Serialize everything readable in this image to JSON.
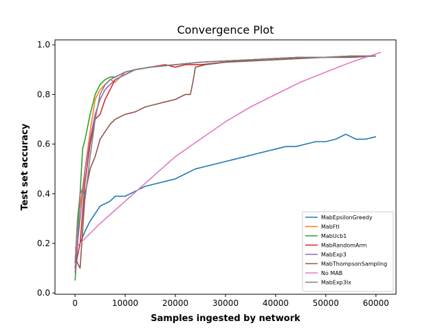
{
  "chart_data": {
    "type": "line",
    "title": "Convergence Plot",
    "xlabel": "Samples ingested by network",
    "ylabel": "Test set accuracy",
    "xlim": [
      -4000,
      64000
    ],
    "ylim": [
      -0.005,
      1.02
    ],
    "xticks": [
      0,
      10000,
      20000,
      30000,
      40000,
      50000,
      60000
    ],
    "yticks": [
      0.0,
      0.2,
      0.4,
      0.6,
      0.8,
      1.0
    ],
    "xtick_labels": [
      "0",
      "10000",
      "20000",
      "30000",
      "40000",
      "50000",
      "60000"
    ],
    "ytick_labels": [
      "0.0",
      "0.2",
      "0.4",
      "0.6",
      "0.8",
      "1.0"
    ],
    "grid": false,
    "legend_position": "lower-right",
    "series": [
      {
        "name": "MabEpsilonGreedy",
        "color": "#1f77b4",
        "x": [
          0,
          500,
          1000,
          2000,
          3000,
          4000,
          5000,
          6000,
          7000,
          8000,
          10000,
          12000,
          14000,
          16000,
          18000,
          20000,
          22000,
          24000,
          26000,
          28000,
          30000,
          32000,
          34000,
          36000,
          38000,
          40000,
          42000,
          44000,
          46000,
          48000,
          50000,
          52000,
          54000,
          56000,
          58000,
          60000
        ],
        "y": [
          0.12,
          0.19,
          0.2,
          0.25,
          0.29,
          0.32,
          0.35,
          0.36,
          0.37,
          0.39,
          0.39,
          0.41,
          0.43,
          0.44,
          0.45,
          0.46,
          0.48,
          0.5,
          0.51,
          0.52,
          0.53,
          0.54,
          0.55,
          0.56,
          0.57,
          0.58,
          0.59,
          0.59,
          0.6,
          0.61,
          0.61,
          0.62,
          0.64,
          0.62,
          0.62,
          0.63
        ]
      },
      {
        "name": "MabFtl",
        "color": "#ff7f0e",
        "x": [
          0,
          500,
          1000,
          2000,
          3000,
          4000,
          5000,
          6000,
          7000,
          8000,
          9000,
          10000,
          12000,
          15000,
          20000,
          25000,
          30000,
          35000,
          40000,
          45000,
          50000,
          55000,
          60000
        ],
        "y": [
          0.1,
          0.3,
          0.35,
          0.5,
          0.65,
          0.78,
          0.82,
          0.84,
          0.86,
          0.85,
          0.87,
          0.89,
          0.9,
          0.91,
          0.92,
          0.93,
          0.935,
          0.94,
          0.945,
          0.95,
          0.95,
          0.955,
          0.955
        ]
      },
      {
        "name": "MabUcb1",
        "color": "#2ca02c",
        "x": [
          0,
          500,
          1000,
          1500,
          2000,
          3000,
          4000,
          5000,
          6000,
          7000,
          8000,
          9000,
          10000,
          12000,
          15000,
          20000,
          25000,
          30000,
          35000,
          40000,
          45000,
          50000,
          55000,
          60000
        ],
        "y": [
          0.05,
          0.2,
          0.4,
          0.58,
          0.62,
          0.72,
          0.8,
          0.84,
          0.86,
          0.87,
          0.87,
          0.88,
          0.89,
          0.9,
          0.91,
          0.92,
          0.93,
          0.935,
          0.94,
          0.945,
          0.95,
          0.95,
          0.955,
          0.955
        ]
      },
      {
        "name": "MabRandomArm",
        "color": "#d62728",
        "x": [
          0,
          500,
          1000,
          2000,
          3000,
          4000,
          5000,
          6000,
          7000,
          8000,
          10000,
          12000,
          15000,
          18000,
          20000,
          22000,
          25000,
          30000,
          35000,
          40000,
          45000,
          50000,
          55000,
          60000
        ],
        "y": [
          0.1,
          0.15,
          0.2,
          0.45,
          0.6,
          0.7,
          0.72,
          0.78,
          0.82,
          0.86,
          0.88,
          0.9,
          0.91,
          0.92,
          0.91,
          0.92,
          0.92,
          0.93,
          0.94,
          0.945,
          0.95,
          0.95,
          0.95,
          0.955
        ]
      },
      {
        "name": "MabExp3",
        "color": "#9467bd",
        "x": [
          0,
          500,
          1000,
          2000,
          3000,
          4000,
          5000,
          6000,
          7000,
          8000,
          10000,
          12000,
          15000,
          20000,
          25000,
          30000,
          35000,
          40000,
          45000,
          50000,
          55000,
          60000
        ],
        "y": [
          0.08,
          0.2,
          0.3,
          0.5,
          0.62,
          0.72,
          0.78,
          0.82,
          0.84,
          0.86,
          0.88,
          0.9,
          0.91,
          0.92,
          0.93,
          0.935,
          0.94,
          0.945,
          0.95,
          0.95,
          0.955,
          0.955
        ]
      },
      {
        "name": "MabThompsonSampling",
        "color": "#8c564b",
        "x": [
          0,
          500,
          1000,
          2000,
          3000,
          4000,
          5000,
          6000,
          7000,
          8000,
          10000,
          12000,
          14000,
          16000,
          18000,
          20000,
          22000,
          23000,
          23500,
          24000,
          26000,
          28000,
          30000,
          35000,
          40000,
          45000,
          50000,
          55000,
          60000
        ],
        "y": [
          0.15,
          0.12,
          0.1,
          0.4,
          0.5,
          0.55,
          0.62,
          0.65,
          0.68,
          0.7,
          0.72,
          0.73,
          0.75,
          0.76,
          0.77,
          0.78,
          0.8,
          0.8,
          0.85,
          0.91,
          0.92,
          0.925,
          0.93,
          0.935,
          0.94,
          0.945,
          0.95,
          0.95,
          0.955
        ]
      },
      {
        "name": "No MAB",
        "color": "#e377c2",
        "x": [
          0,
          5000,
          10000,
          15000,
          20000,
          25000,
          30000,
          35000,
          40000,
          45000,
          50000,
          55000,
          61000
        ],
        "y": [
          0.18,
          0.28,
          0.37,
          0.46,
          0.55,
          0.62,
          0.69,
          0.75,
          0.8,
          0.85,
          0.89,
          0.93,
          0.97
        ]
      },
      {
        "name": "MabExp3Ix",
        "color": "#7f7f7f",
        "x": [
          0,
          500,
          1000,
          1500,
          2000,
          3000,
          4000,
          5000,
          6000,
          7000,
          8000,
          10000,
          12000,
          15000,
          20000,
          25000,
          30000,
          35000,
          40000,
          45000,
          50000,
          55000,
          60000
        ],
        "y": [
          0.12,
          0.3,
          0.4,
          0.42,
          0.38,
          0.55,
          0.7,
          0.8,
          0.84,
          0.86,
          0.87,
          0.89,
          0.9,
          0.91,
          0.92,
          0.93,
          0.935,
          0.94,
          0.945,
          0.95,
          0.95,
          0.955,
          0.955
        ]
      }
    ]
  }
}
